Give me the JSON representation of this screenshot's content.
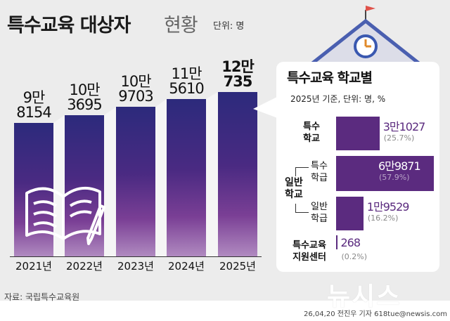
{
  "header": {
    "title": "특수교육 대상자",
    "title_suffix": "현황",
    "unit": "단위: 명"
  },
  "chart_data": [
    {
      "type": "bar",
      "title": "",
      "categories": [
        "2021년",
        "2022년",
        "2023년",
        "2024년",
        "2025년"
      ],
      "values": [
        98154,
        103695,
        109703,
        115610,
        120735
      ],
      "value_labels": [
        [
          "9만",
          "8154"
        ],
        [
          "10만",
          "3695"
        ],
        [
          "10만",
          "9703"
        ],
        [
          "11만",
          "5610"
        ],
        [
          "12만",
          "735"
        ]
      ],
      "ylim": [
        0,
        120735
      ],
      "grid": false,
      "color_top": "#2c2a7c",
      "color_bottom": "#b08ac0"
    },
    {
      "type": "bar",
      "orientation": "horizontal",
      "title": "특수교육 학교별",
      "subtitle": "2025년 기준, 단위: 명, %",
      "categories": [
        [
          "특수",
          "학교"
        ],
        [
          "특수",
          "학급"
        ],
        [
          "일반",
          "학급"
        ],
        [
          "특수교육",
          "지원센터"
        ]
      ],
      "group_label": [
        "일반",
        "학교"
      ],
      "values": [
        31027,
        69871,
        19529,
        268
      ],
      "value_labels": [
        "3만1027",
        "6만9871",
        "1만9529",
        "268"
      ],
      "percents": [
        "(25.7%)",
        "(57.9%)",
        "(16.2%)",
        "(0.2%)"
      ],
      "color": "#5b2b7f"
    }
  ],
  "footer": {
    "source": "자료: 국립특수교육원",
    "logo": "뉴시스",
    "credit": "26,04,20 전진우 기자 618tue@newsis.com"
  }
}
